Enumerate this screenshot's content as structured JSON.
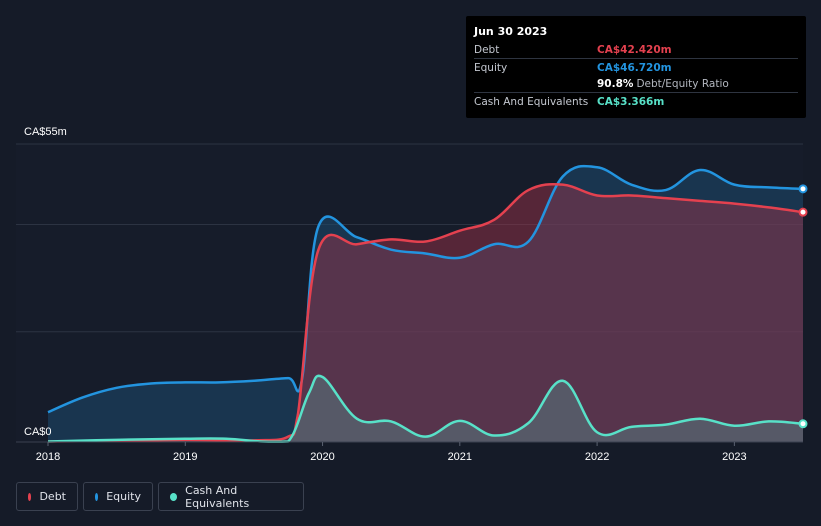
{
  "tooltip": {
    "date": "Jun 30 2023",
    "debt_label": "Debt",
    "debt_value": "CA$42.420m",
    "equity_label": "Equity",
    "equity_value": "CA$46.720m",
    "ratio_pct": "90.8%",
    "ratio_label": "Debt/Equity Ratio",
    "cash_label": "Cash And Equivalents",
    "cash_value": "CA$3.366m"
  },
  "legend": [
    {
      "label": "Debt",
      "color": "#e4414f"
    },
    {
      "label": "Equity",
      "color": "#2394df"
    },
    {
      "label": "Cash And Equivalents",
      "color": "#58e1c8"
    }
  ],
  "colors": {
    "debt": "#e4414f",
    "equity": "#2394df",
    "cash": "#58e1c8",
    "background": "#151b28"
  },
  "chart_data": {
    "type": "area",
    "title": "",
    "xlabel": "",
    "ylabel": "",
    "y_top_label": "CA$55m",
    "y_bottom_label": "CA$0",
    "ylim": [
      0,
      55
    ],
    "xlim": [
      2018.0,
      2023.5
    ],
    "x_tick_labels": [
      "2018",
      "2019",
      "2020",
      "2021",
      "2022",
      "2023"
    ],
    "x_tick_values": [
      2018,
      2019,
      2020,
      2021,
      2022,
      2023
    ],
    "series": [
      {
        "name": "Equity",
        "x": [
          2018.0,
          2018.25,
          2018.5,
          2018.75,
          2019.0,
          2019.25,
          2019.5,
          2019.75,
          2019.85,
          2019.97,
          2020.25,
          2020.5,
          2020.75,
          2021.0,
          2021.25,
          2021.5,
          2021.75,
          2022.0,
          2022.25,
          2022.5,
          2022.75,
          2023.0,
          2023.25,
          2023.5
        ],
        "values": [
          5.5,
          8.2,
          10.0,
          10.8,
          11.0,
          11.0,
          11.3,
          11.8,
          11.5,
          39.8,
          37.8,
          35.5,
          34.8,
          34.0,
          36.5,
          37.0,
          49.0,
          50.7,
          47.5,
          46.5,
          50.2,
          47.5,
          47.0,
          46.72
        ]
      },
      {
        "name": "Debt",
        "x": [
          2018.0,
          2018.5,
          2019.0,
          2019.5,
          2019.75,
          2019.82,
          2019.97,
          2020.25,
          2020.5,
          2020.75,
          2021.0,
          2021.25,
          2021.5,
          2021.75,
          2022.0,
          2022.25,
          2022.5,
          2022.75,
          2023.0,
          2023.25,
          2023.5
        ],
        "values": [
          0.1,
          0.2,
          0.4,
          0.3,
          1.0,
          5.0,
          35.5,
          36.5,
          37.4,
          37.0,
          39.0,
          41.0,
          46.5,
          47.5,
          45.5,
          45.5,
          45.0,
          44.5,
          44.0,
          43.3,
          42.42
        ]
      },
      {
        "name": "Cash And Equivalents",
        "x": [
          2018.0,
          2018.5,
          2019.0,
          2019.3,
          2019.55,
          2019.75,
          2019.9,
          2020.0,
          2020.25,
          2020.5,
          2020.75,
          2021.0,
          2021.25,
          2021.5,
          2021.75,
          2022.0,
          2022.25,
          2022.5,
          2022.75,
          2023.0,
          2023.25,
          2023.5
        ],
        "values": [
          0.1,
          0.4,
          0.6,
          0.6,
          0.1,
          0.1,
          9.0,
          12.0,
          4.3,
          3.8,
          1.0,
          3.9,
          1.2,
          3.5,
          11.3,
          1.8,
          2.8,
          3.2,
          4.3,
          3.0,
          3.8,
          3.366
        ]
      }
    ]
  }
}
